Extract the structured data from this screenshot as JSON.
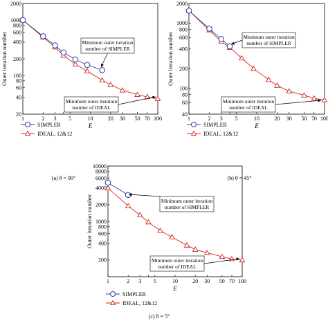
{
  "figure": {
    "captions": [
      "(a) θ = 90°",
      "(b) θ = 45°",
      "(c) θ = 5°"
    ]
  },
  "colors": {
    "simpler": "#2a3f9c",
    "ideal": "#d52020"
  },
  "chart_data": [
    {
      "type": "line",
      "caption": "(a) θ = 90°",
      "xlabel": "E",
      "ylabel": "Outer iteration number",
      "xscale": "log",
      "yscale": "log",
      "xlim": [
        1,
        100
      ],
      "ylim": [
        20,
        2000
      ],
      "xticks": [
        1,
        2,
        3,
        4,
        5,
        10,
        20,
        30,
        50,
        70,
        100
      ],
      "xtick_labels": [
        "1",
        "2",
        "3",
        "5",
        "10",
        "20",
        "30",
        "50",
        "70",
        "100"
      ],
      "yticks": [
        20,
        40,
        60,
        80,
        100,
        200,
        400,
        600,
        800,
        1000,
        2000
      ],
      "ytick_labels": [
        "20",
        "40",
        "60",
        "80",
        "100",
        "200",
        "400",
        "600",
        "800",
        "1000",
        "2000"
      ],
      "legend": [
        "SIMPLER",
        "IDEAL, 12&12"
      ],
      "series": [
        {
          "name": "SIMPLER",
          "marker": "circle",
          "x": [
            1,
            2,
            3,
            4,
            6,
            9,
            15
          ],
          "y": [
            1000,
            510,
            350,
            260,
            195,
            155,
            125
          ]
        },
        {
          "name": "IDEAL, 12&12",
          "marker": "triangle",
          "x": [
            1,
            2,
            3,
            4,
            6,
            9,
            15,
            20,
            30,
            50,
            70,
            100
          ],
          "y": [
            1000,
            490,
            325,
            230,
            160,
            120,
            82,
            68,
            54,
            45,
            41,
            38
          ]
        }
      ],
      "annotations": [
        {
          "text": "Minimum outer iteration number of SIMPLER",
          "lines": [
            "Minimum outer iteration",
            "number of SIMPLER"
          ]
        },
        {
          "text": "Minimum outer iteration number of IDEAL",
          "lines": [
            "Minimum outer iteration",
            "number of IDEAL"
          ]
        }
      ]
    },
    {
      "type": "line",
      "caption": "(b) θ = 45°",
      "xlabel": "E",
      "ylabel": "Outer iteration number",
      "xscale": "log",
      "yscale": "log",
      "xlim": [
        1,
        100
      ],
      "ylim": [
        40,
        2000
      ],
      "xticks": [
        1,
        2,
        3,
        4,
        5,
        10,
        20,
        30,
        50,
        70,
        100
      ],
      "xtick_labels": [
        "1",
        "2",
        "3",
        "5",
        "10",
        "20",
        "30",
        "50",
        "70",
        "100"
      ],
      "yticks": [
        40,
        60,
        80,
        100,
        200,
        400,
        600,
        800,
        1000,
        2000
      ],
      "ytick_labels": [
        "40",
        "60",
        "80",
        "100",
        "200",
        "400",
        "600",
        "800",
        "1000",
        "2000"
      ],
      "legend": [
        "SIMPLER",
        "IDEAL, 12&12"
      ],
      "series": [
        {
          "name": "SIMPLER",
          "marker": "circle",
          "x": [
            1,
            2,
            3,
            4
          ],
          "y": [
            1550,
            820,
            570,
            440
          ]
        },
        {
          "name": "IDEAL, 12&12",
          "marker": "triangle",
          "x": [
            1,
            2,
            3,
            4,
            6,
            9,
            15,
            20,
            30,
            50,
            70,
            100
          ],
          "y": [
            1550,
            780,
            520,
            420,
            290,
            200,
            135,
            110,
            90,
            78,
            70,
            66
          ]
        }
      ],
      "annotations": [
        {
          "text": "Minimum outer iteration number of SIMPLER",
          "lines": [
            "Minimum outer iteration",
            "number of SIMPLER"
          ]
        },
        {
          "text": "Minimum outer iteration number of IDEAL",
          "lines": [
            "Minimum outer iteration",
            "number of IDEAL"
          ]
        }
      ]
    },
    {
      "type": "line",
      "caption": "(c) θ = 5°",
      "xlabel": "E",
      "ylabel": "Outer iteration number",
      "xscale": "log",
      "yscale": "log",
      "xlim": [
        1,
        100
      ],
      "ylim": [
        100,
        10000
      ],
      "xticks": [
        1,
        2,
        3,
        4,
        5,
        10,
        20,
        30,
        50,
        70,
        100
      ],
      "xtick_labels": [
        "1",
        "2",
        "3",
        "5",
        "10",
        "20",
        "30",
        "50",
        "70",
        "100"
      ],
      "yticks": [
        100,
        200,
        400,
        600,
        800,
        1000,
        2000,
        4000,
        6000,
        8000,
        10000
      ],
      "ytick_labels": [
        "200",
        "400",
        "600",
        "800",
        "1000",
        "2000",
        "4000",
        "6000",
        "8000",
        "10000"
      ],
      "legend": [
        "SIMPLER",
        "IDEAL, 12&12"
      ],
      "series": [
        {
          "name": "SIMPLER",
          "marker": "circle",
          "x": [
            1,
            2
          ],
          "y": [
            5000,
            3000
          ]
        },
        {
          "name": "IDEAL, 12&12",
          "marker": "triangle",
          "x": [
            1,
            2,
            3,
            4,
            6,
            9,
            15,
            20,
            30,
            50,
            70,
            100
          ],
          "y": [
            4000,
            1900,
            1300,
            970,
            680,
            520,
            370,
            310,
            270,
            230,
            210,
            200
          ]
        }
      ],
      "annotations": [
        {
          "text": "Minimum outer iteration number of SIMPLER",
          "lines": [
            "Minimum outer iteration",
            "number of SIMPLER"
          ]
        },
        {
          "text": "Minimum outer iteration number of IDEAL",
          "lines": [
            "Minimum outer iteration",
            "number of IDEAL"
          ]
        }
      ]
    }
  ]
}
